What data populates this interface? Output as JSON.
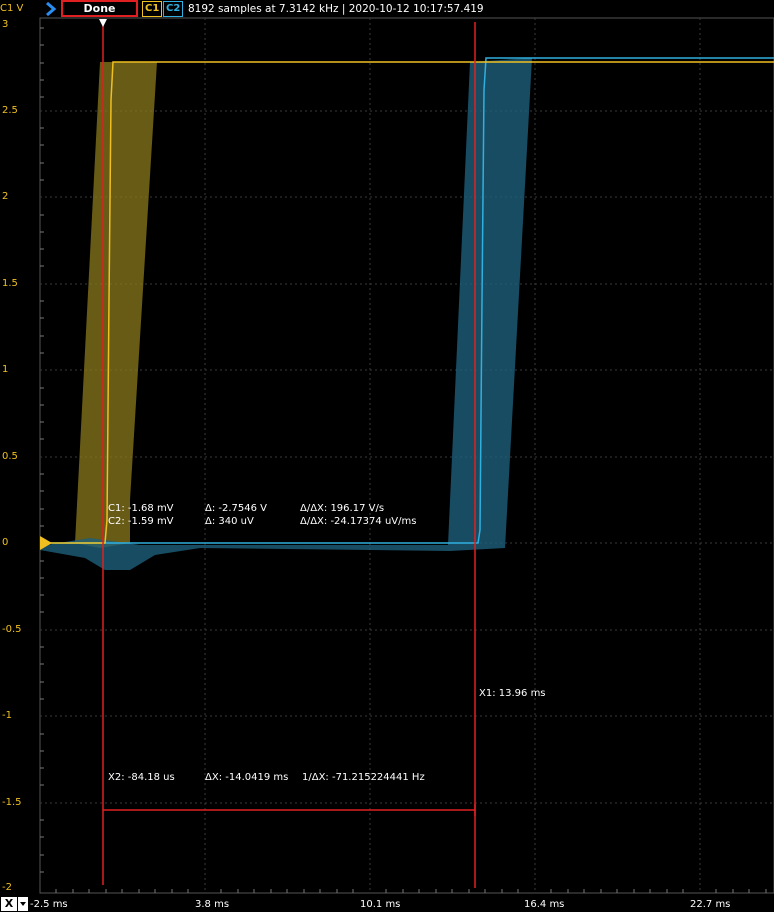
{
  "toolbar": {
    "y_channel_label": "C1 V",
    "run_state": "Done",
    "channel1": "C1",
    "channel2": "C2",
    "status": "8192 samples at 7.3142 kHz | 2020-10-12 10:17:57.419"
  },
  "axes": {
    "y_ticks": [
      "3",
      "2.5",
      "2",
      "1.5",
      "1",
      "0.5",
      "0",
      "-0.5",
      "-1",
      "-1.5",
      "-2"
    ],
    "x_ticks": [
      "-2.5 ms",
      "3.8 ms",
      "10.1 ms",
      "16.4 ms",
      "22.7 ms"
    ],
    "x_button": "X"
  },
  "cursors": {
    "c1_value": "C1: -1.68 mV",
    "c1_delta": "Δ: -2.7546 V",
    "c1_rate": "Δ/ΔX: 196.17 V/s",
    "c2_value": "C2: -1.59 mV",
    "c2_delta": "Δ: 340 uV",
    "c2_rate": "Δ/ΔX: -24.17374 uV/ms",
    "x1_label": "X1: 13.96 ms",
    "x2_label": "X2: -84.18 us",
    "dx_label": "ΔX: -14.0419 ms",
    "inv_dx_label": "1/ΔX: -71.215224441 Hz"
  },
  "colors": {
    "channel1": "#f0c020",
    "channel2": "#30b0e0",
    "cursor": "#e02020",
    "grid": "#3a3a3a"
  }
}
